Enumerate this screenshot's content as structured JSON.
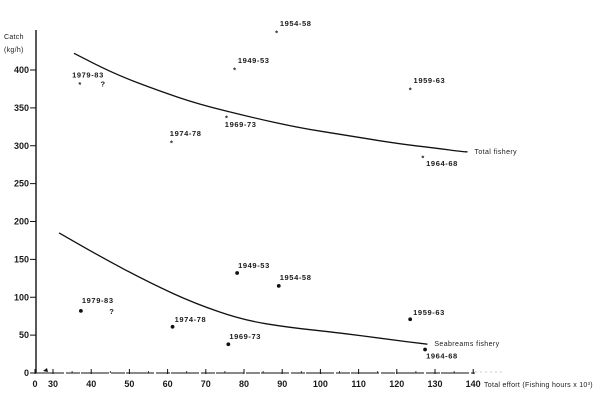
{
  "chart_data": {
    "type": "scatter",
    "title": "",
    "xlabel": "Total effort (Fishing hours x 10³)",
    "ylabel": "Catch (kg/h)",
    "ylabel_lines": [
      "Catch",
      "(kg/h)"
    ],
    "xlim": [
      0,
      140
    ],
    "ylim": [
      0,
      450
    ],
    "x_axis_break": "between 0 and 30",
    "x_ticks": [
      0,
      30,
      40,
      50,
      60,
      70,
      80,
      90,
      100,
      110,
      120,
      130,
      140
    ],
    "x_tick_labels": [
      "0",
      "30",
      "40",
      "50",
      "60",
      "70",
      "80",
      "90",
      "100",
      "110",
      "120",
      "130",
      "140"
    ],
    "y_ticks": [
      0,
      50,
      100,
      150,
      200,
      250,
      300,
      350,
      400
    ],
    "y_tick_labels": [
      "0",
      "50",
      "100",
      "150",
      "200",
      "250",
      "300",
      "350",
      "400"
    ],
    "grid": false,
    "legend": "inline labels at curve ends",
    "series": [
      {
        "name": "Total fishery",
        "marker": "star",
        "points": [
          {
            "label": "1949-53",
            "x": 77.6,
            "y": 401
          },
          {
            "label": "1954-58",
            "x": 88.6,
            "y": 450
          },
          {
            "label": "1959-63",
            "x": 123.6,
            "y": 375
          },
          {
            "label": "1964-68",
            "x": 126.9,
            "y": 285
          },
          {
            "label": "1969-73",
            "x": 75.5,
            "y": 338
          },
          {
            "label": "1974-78",
            "x": 61.1,
            "y": 305
          },
          {
            "label": "1979-83",
            "x": 37.1,
            "y": 382
          }
        ],
        "extra_mark": {
          "label": "?",
          "x": 43.1,
          "y": 382
        },
        "fitted_curve": [
          [
            35.5,
            422
          ],
          [
            46,
            395
          ],
          [
            58,
            372
          ],
          [
            68,
            355
          ],
          [
            81.6,
            338
          ],
          [
            94,
            324
          ],
          [
            107.7,
            313
          ],
          [
            120,
            303
          ],
          [
            130,
            297
          ],
          [
            137.3,
            292
          ],
          [
            138.5,
            292
          ]
        ]
      },
      {
        "name": "Seabreams fishery",
        "marker": "dot",
        "points": [
          {
            "label": "1949-53",
            "x": 78.2,
            "y": 132
          },
          {
            "label": "1954-58",
            "x": 89.1,
            "y": 115
          },
          {
            "label": "1959-63",
            "x": 123.5,
            "y": 71
          },
          {
            "label": "1964-68",
            "x": 127.4,
            "y": 31
          },
          {
            "label": "1969-73",
            "x": 75.9,
            "y": 38
          },
          {
            "label": "1974-78",
            "x": 61.3,
            "y": 61
          },
          {
            "label": "1979-83",
            "x": 37.3,
            "y": 82
          }
        ],
        "extra_mark": {
          "label": "?",
          "x": 45.4,
          "y": 82
        },
        "fitted_curve": [
          [
            31.6,
            185
          ],
          [
            43,
            152
          ],
          [
            55.4,
            119
          ],
          [
            67,
            92
          ],
          [
            79.7,
            70
          ],
          [
            92,
            60
          ],
          [
            105,
            53
          ],
          [
            117,
            45
          ],
          [
            128,
            38
          ]
        ]
      }
    ],
    "annotations": [
      {
        "text": "Total fishery",
        "near": "end of upper curve"
      },
      {
        "text": "Seabreams fishery",
        "near": "end of lower curve"
      }
    ]
  },
  "layout": {
    "ink_color": "#111111",
    "background": "#ffffff"
  }
}
